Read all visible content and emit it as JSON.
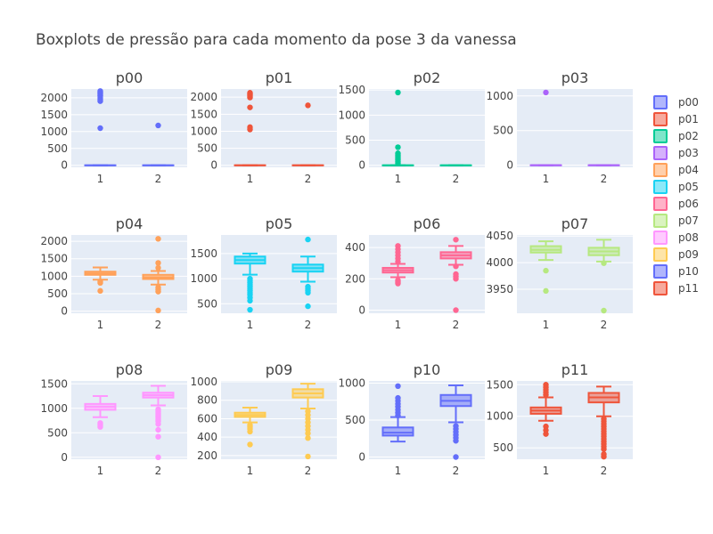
{
  "chart_data": {
    "type": "box",
    "title": "Boxplots de pressão para cada momento da pose 3 da vanessa",
    "legend_position": "right",
    "grid": true,
    "subplots": [
      {
        "name": "p00",
        "color": "#636efa",
        "xticks": [
          "1",
          "2"
        ],
        "yticks": [
          0,
          500,
          1000,
          1500,
          2000
        ],
        "ylim": [
          -60,
          2260
        ],
        "boxes": [
          {
            "x": "1",
            "min": 0,
            "q1": 0,
            "median": 0,
            "q3": 0,
            "max": 0,
            "outliers": [
              1100,
              1900,
              1950,
              2000,
              2050,
              2080,
              2110,
              2140,
              2170,
              2200
            ]
          },
          {
            "x": "2",
            "min": 0,
            "q1": 0,
            "median": 0,
            "q3": 0,
            "max": 0,
            "outliers": [
              1180
            ]
          }
        ]
      },
      {
        "name": "p01",
        "color": "#ef553b",
        "xticks": [
          "1",
          "2"
        ],
        "yticks": [
          0,
          500,
          1000,
          1500,
          2000
        ],
        "ylim": [
          -60,
          2240
        ],
        "boxes": [
          {
            "x": "1",
            "min": 0,
            "q1": 0,
            "median": 0,
            "q3": 0,
            "max": 0,
            "outliers": [
              1050,
              1120,
              1700,
              1990,
              2030,
              2070,
              2100,
              2130
            ]
          },
          {
            "x": "2",
            "min": 0,
            "q1": 0,
            "median": 0,
            "q3": 0,
            "max": 0,
            "outliers": [
              1760
            ]
          }
        ]
      },
      {
        "name": "p02",
        "color": "#00cc96",
        "xticks": [
          "1",
          "2"
        ],
        "yticks": [
          0,
          500,
          1000,
          1500
        ],
        "ylim": [
          -40,
          1520
        ],
        "boxes": [
          {
            "x": "1",
            "min": 0,
            "q1": 0,
            "median": 0,
            "q3": 0,
            "max": 0,
            "outliers": [
              40,
              80,
              110,
              140,
              170,
              200,
              240,
              360,
              1450
            ]
          },
          {
            "x": "2",
            "min": 0,
            "q1": 0,
            "median": 0,
            "q3": 0,
            "max": 0,
            "outliers": []
          }
        ]
      },
      {
        "name": "p03",
        "color": "#ab63fa",
        "xticks": [
          "1",
          "2"
        ],
        "yticks": [
          0,
          500,
          1000
        ],
        "ylim": [
          -30,
          1100
        ],
        "boxes": [
          {
            "x": "1",
            "min": 0,
            "q1": 0,
            "median": 0,
            "q3": 0,
            "max": 0,
            "outliers": [
              1050
            ]
          },
          {
            "x": "2",
            "min": 0,
            "q1": 0,
            "median": 0,
            "q3": 0,
            "max": 0,
            "outliers": []
          }
        ]
      },
      {
        "name": "p04",
        "color": "#ffa15a",
        "xticks": [
          "1",
          "2"
        ],
        "yticks": [
          0,
          500,
          1000,
          1500,
          2000
        ],
        "ylim": [
          -60,
          2180
        ],
        "boxes": [
          {
            "x": "1",
            "min": 900,
            "q1": 1040,
            "median": 1080,
            "q3": 1130,
            "max": 1250,
            "outliers": [
              580,
              810,
              850
            ]
          },
          {
            "x": "2",
            "min": 760,
            "q1": 920,
            "median": 970,
            "q3": 1040,
            "max": 1150,
            "outliers": [
              20,
              560,
              620,
              680,
              1240,
              1380,
              2070
            ]
          }
        ]
      },
      {
        "name": "p05",
        "color": "#19d3f3",
        "xticks": [
          "1",
          "2"
        ],
        "yticks": [
          500,
          1000,
          1500
        ],
        "ylim": [
          310,
          1870
        ],
        "boxes": [
          {
            "x": "1",
            "min": 1080,
            "q1": 1300,
            "median": 1370,
            "q3": 1440,
            "max": 1500,
            "outliers": [
              380,
              560,
              620,
              680,
              720,
              760,
              800,
              840,
              880,
              920,
              960,
              1000
            ]
          },
          {
            "x": "2",
            "min": 940,
            "q1": 1140,
            "median": 1210,
            "q3": 1280,
            "max": 1440,
            "outliers": [
              450,
              720,
              760,
              800,
              840,
              1780
            ]
          }
        ]
      },
      {
        "name": "p06",
        "color": "#ff6692",
        "xticks": [
          "1",
          "2"
        ],
        "yticks": [
          0,
          200,
          400
        ],
        "ylim": [
          -20,
          480
        ],
        "boxes": [
          {
            "x": "1",
            "min": 210,
            "q1": 240,
            "median": 255,
            "q3": 270,
            "max": 295,
            "outliers": [
              170,
              180,
              190,
              310,
              330,
              350,
              370,
              390,
              410
            ]
          },
          {
            "x": "2",
            "min": 290,
            "q1": 330,
            "median": 350,
            "q3": 370,
            "max": 410,
            "outliers": [
              0,
              200,
              215,
              230,
              280,
              450
            ]
          }
        ]
      },
      {
        "name": "p07",
        "color": "#b6e880",
        "xticks": [
          "1",
          "2"
        ],
        "yticks": [
          3950,
          4000,
          4050
        ],
        "ylim": [
          3905,
          4052
        ],
        "boxes": [
          {
            "x": "1",
            "min": 4005,
            "q1": 4019,
            "median": 4024,
            "q3": 4031,
            "max": 4040,
            "outliers": [
              3947,
              3985
            ]
          },
          {
            "x": "2",
            "min": 4002,
            "q1": 4014,
            "median": 4021,
            "q3": 4028,
            "max": 4043,
            "outliers": [
              3910,
              3999
            ]
          }
        ]
      },
      {
        "name": "p08",
        "color": "#ff97ff",
        "xticks": [
          "1",
          "2"
        ],
        "yticks": [
          0,
          500,
          1000,
          1500
        ],
        "ylim": [
          -40,
          1560
        ],
        "boxes": [
          {
            "x": "1",
            "min": 820,
            "q1": 970,
            "median": 1030,
            "q3": 1090,
            "max": 1250,
            "outliers": [
              620,
              660,
              700
            ]
          },
          {
            "x": "2",
            "min": 1060,
            "q1": 1220,
            "median": 1270,
            "q3": 1320,
            "max": 1460,
            "outliers": [
              0,
              420,
              560,
              680,
              740,
              780,
              820,
              860,
              900,
              940,
              980
            ]
          }
        ]
      },
      {
        "name": "p09",
        "color": "#fecb52",
        "xticks": [
          "1",
          "2"
        ],
        "yticks": [
          200,
          400,
          600,
          800,
          1000
        ],
        "ylim": [
          160,
          1010
        ],
        "boxes": [
          {
            "x": "1",
            "min": 560,
            "q1": 620,
            "median": 640,
            "q3": 665,
            "max": 720,
            "outliers": [
              320,
              460,
              490,
              510,
              530
            ]
          },
          {
            "x": "2",
            "min": 710,
            "q1": 830,
            "median": 875,
            "q3": 920,
            "max": 980,
            "outliers": [
              190,
              390,
              440,
              480,
              520,
              560,
              600,
              640,
              680
            ]
          }
        ]
      },
      {
        "name": "p10",
        "color": "#636efa",
        "xticks": [
          "1",
          "2"
        ],
        "yticks": [
          0,
          500,
          1000
        ],
        "ylim": [
          -30,
          1030
        ],
        "boxes": [
          {
            "x": "1",
            "min": 210,
            "q1": 290,
            "median": 330,
            "q3": 400,
            "max": 540,
            "outliers": [
              560,
              600,
              640,
              680,
              720,
              760,
              800,
              960
            ]
          },
          {
            "x": "2",
            "min": 470,
            "q1": 690,
            "median": 760,
            "q3": 840,
            "max": 970,
            "outliers": [
              0,
              220,
              260,
              300,
              340,
              380,
              420
            ]
          }
        ]
      },
      {
        "name": "p11",
        "color": "#ef553b",
        "xticks": [
          "1",
          "2"
        ],
        "yticks": [
          500,
          1000,
          1500
        ],
        "ylim": [
          320,
          1560
        ],
        "boxes": [
          {
            "x": "1",
            "min": 930,
            "q1": 1040,
            "median": 1090,
            "q3": 1140,
            "max": 1300,
            "outliers": [
              720,
              780,
              840,
              1340,
              1380,
              1420,
              1460,
              1500
            ]
          },
          {
            "x": "2",
            "min": 1000,
            "q1": 1220,
            "median": 1300,
            "q3": 1370,
            "max": 1470,
            "outliers": [
              360,
              400,
              480,
              520,
              560,
              600,
              640,
              680,
              720,
              760,
              800,
              840,
              880,
              920,
              960
            ]
          }
        ]
      }
    ]
  }
}
